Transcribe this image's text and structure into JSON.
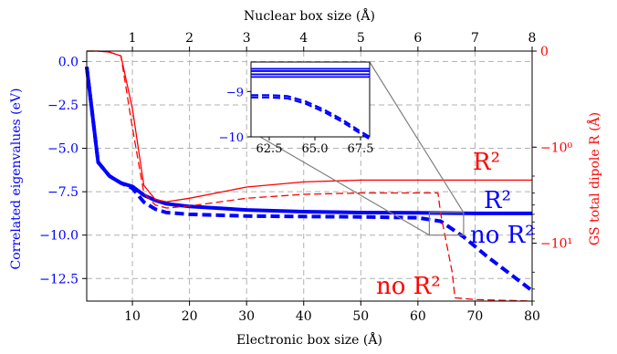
{
  "chart_data": {
    "type": "line",
    "xlabel": "Electronic box size (Å)",
    "x2label": "Nuclear box size (Å)",
    "ylabel": "Correlated eigenvalues (eV)",
    "y2label": "GS total dipole R (Å)",
    "xlim": [
      2,
      80
    ],
    "x2lim": [
      0.2,
      8
    ],
    "ylim": [
      -13.8,
      0.6
    ],
    "y2scale": "symlog",
    "y2lim": [
      0,
      -40
    ],
    "grid": true,
    "xticks": [
      "10",
      "20",
      "30",
      "40",
      "50",
      "60",
      "70",
      "80"
    ],
    "x2ticks": [
      "1",
      "2",
      "3",
      "4",
      "5",
      "6",
      "7",
      "8"
    ],
    "yticks": [
      "0.0",
      "−2.5",
      "−5.0",
      "−7.5",
      "−10.0",
      "−12.5"
    ],
    "y2ticks": [
      "0",
      "−10⁰",
      "−10¹"
    ],
    "colors": {
      "left_axis": "#0000ff",
      "right_axis": "#ff0000",
      "grid": "#b0b0b0",
      "connector": "#808080"
    },
    "series": [
      {
        "name": "R²",
        "axis": "left",
        "style": "solid",
        "color": "#0000ff",
        "x": [
          2,
          4,
          6,
          8,
          10,
          12,
          14,
          16,
          20,
          30,
          40,
          50,
          60,
          70,
          80
        ],
        "y": [
          -0.3,
          -5.8,
          -6.6,
          -7.0,
          -7.2,
          -7.7,
          -8.0,
          -8.2,
          -8.35,
          -8.55,
          -8.65,
          -8.7,
          -8.72,
          -8.75,
          -8.75
        ]
      },
      {
        "name": "no R²",
        "axis": "left",
        "style": "dashed",
        "color": "#0000ff",
        "x": [
          2,
          4,
          6,
          8,
          10,
          12,
          14,
          16,
          20,
          30,
          40,
          50,
          60,
          64,
          68,
          72,
          76,
          80
        ],
        "y": [
          -0.3,
          -5.8,
          -6.6,
          -7.0,
          -7.3,
          -8.1,
          -8.5,
          -8.7,
          -8.8,
          -8.9,
          -8.93,
          -8.95,
          -9.0,
          -9.2,
          -10.1,
          -11.2,
          -12.2,
          -13.2
        ]
      },
      {
        "name": "R²",
        "axis": "right",
        "style": "solid",
        "color": "#ff0000",
        "x": [
          2,
          4,
          6,
          8,
          10,
          12,
          14,
          16,
          20,
          30,
          40,
          50,
          60,
          70,
          80
        ],
        "y": [
          0,
          0,
          -0.01,
          -0.05,
          -0.6,
          -2.5,
          -3.5,
          -3.7,
          -3.4,
          -2.6,
          -2.3,
          -2.2,
          -2.2,
          -2.2,
          -2.2
        ]
      },
      {
        "name": "no R²",
        "axis": "right",
        "style": "dashed",
        "color": "#ff0000",
        "x": [
          2,
          4,
          6,
          8,
          10,
          12,
          14,
          16,
          20,
          30,
          40,
          50,
          60,
          63.5,
          64,
          65,
          66,
          66.5,
          70,
          80
        ],
        "y": [
          0,
          0,
          -0.01,
          -0.05,
          -0.8,
          -3.0,
          -4.0,
          -4.3,
          -4.1,
          -3.4,
          -3.1,
          -3.0,
          -3.0,
          -3.0,
          -5.0,
          -10.0,
          -20.0,
          -37.0,
          -38.5,
          -40.0
        ]
      }
    ],
    "annotations": [
      "R²",
      "R²",
      "no R²",
      "no R²"
    ],
    "inset": {
      "xlim": [
        61.5,
        68.0
      ],
      "ylim": [
        -10.0,
        -8.35
      ],
      "xticks": [
        "62.5",
        "65.0",
        "67.5"
      ],
      "yticks": [
        "−9",
        "−10"
      ],
      "solid_lines_y": [
        -8.5,
        -8.55,
        -8.62,
        -8.68
      ],
      "dashed_series": [
        {
          "x": [
            61.5,
            62.5,
            63.5,
            64.5,
            65.5,
            66.5,
            67.5,
            68.0
          ],
          "y": [
            -9.08,
            -9.08,
            -9.1,
            -9.22,
            -9.4,
            -9.62,
            -9.88,
            -10.0
          ]
        },
        {
          "x": [
            61.5,
            62.5,
            63.5,
            64.5,
            65.5,
            66.5,
            67.5,
            68.0
          ],
          "y": [
            -9.13,
            -9.13,
            -9.15,
            -9.27,
            -9.45,
            -9.67,
            -9.93,
            -10.05
          ]
        }
      ],
      "source_region": {
        "x": [
          62,
          68
        ],
        "y": [
          -10.0,
          -8.7
        ]
      }
    }
  }
}
